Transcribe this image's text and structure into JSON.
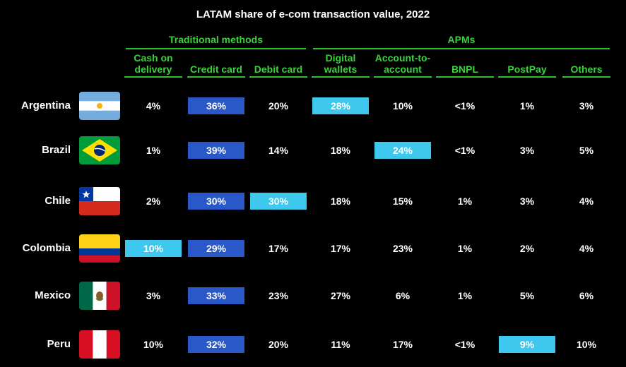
{
  "title": "LATAM share of e-com transaction value, 2022",
  "groups": {
    "traditional": "Traditional methods",
    "apms": "APMs"
  },
  "columns": [
    "Cash on delivery",
    "Credit card",
    "Debit card",
    "Digital wallets",
    "Account-to-account",
    "BNPL",
    "PostPay",
    "Others"
  ],
  "column_lines": [
    [
      "Cash on",
      "delivery"
    ],
    [
      "Credit card"
    ],
    [
      "Debit card"
    ],
    [
      "Digital",
      "wallets"
    ],
    [
      "Account-to-",
      "account"
    ],
    [
      "BNPL"
    ],
    [
      "PostPay"
    ],
    [
      "Others"
    ]
  ],
  "colors": {
    "highlight_dark": "#2a58c9",
    "highlight_light": "#3ec8ee",
    "header_green": "#3dd13d"
  },
  "rows": [
    {
      "country": "Argentina",
      "flag": "argentina-flag-icon",
      "cells": [
        "4%",
        "36%",
        "20%",
        "28%",
        "10%",
        "<1%",
        "1%",
        "3%"
      ],
      "highlights": [
        "",
        "dark",
        "",
        "light",
        "",
        "",
        "",
        ""
      ]
    },
    {
      "country": "Brazil",
      "flag": "brazil-flag-icon",
      "cells": [
        "1%",
        "39%",
        "14%",
        "18%",
        "24%",
        "<1%",
        "3%",
        "5%"
      ],
      "highlights": [
        "",
        "dark",
        "",
        "",
        "light",
        "",
        "",
        ""
      ]
    },
    {
      "country": "Chile",
      "flag": "chile-flag-icon",
      "cells": [
        "2%",
        "30%",
        "30%",
        "18%",
        "15%",
        "1%",
        "3%",
        "4%"
      ],
      "highlights": [
        "",
        "dark",
        "light",
        "",
        "",
        "",
        "",
        ""
      ]
    },
    {
      "country": "Colombia",
      "flag": "colombia-flag-icon",
      "cells": [
        "10%",
        "29%",
        "17%",
        "17%",
        "23%",
        "1%",
        "2%",
        "4%"
      ],
      "highlights": [
        "light",
        "dark",
        "",
        "",
        "",
        "",
        "",
        ""
      ]
    },
    {
      "country": "Mexico",
      "flag": "mexico-flag-icon",
      "cells": [
        "3%",
        "33%",
        "23%",
        "27%",
        "6%",
        "1%",
        "5%",
        "6%"
      ],
      "highlights": [
        "",
        "dark",
        "",
        "",
        "",
        "",
        "",
        ""
      ]
    },
    {
      "country": "Peru",
      "flag": "peru-flag-icon",
      "cells": [
        "10%",
        "32%",
        "20%",
        "11%",
        "17%",
        "<1%",
        "9%",
        "10%"
      ],
      "highlights": [
        "",
        "dark",
        "",
        "",
        "",
        "",
        "light",
        ""
      ]
    }
  ],
  "chart_data": {
    "type": "table",
    "title": "LATAM share of e-com transaction value, 2022",
    "column_groups": [
      {
        "name": "Traditional methods",
        "columns": [
          "Cash on delivery",
          "Credit card",
          "Debit card"
        ]
      },
      {
        "name": "APMs",
        "columns": [
          "Digital wallets",
          "Account-to-account",
          "BNPL",
          "PostPay",
          "Others"
        ]
      }
    ],
    "categories": [
      "Argentina",
      "Brazil",
      "Chile",
      "Colombia",
      "Mexico",
      "Peru"
    ],
    "series": [
      {
        "name": "Cash on delivery",
        "values": [
          "4%",
          "1%",
          "2%",
          "10%",
          "3%",
          "10%"
        ]
      },
      {
        "name": "Credit card",
        "values": [
          "36%",
          "39%",
          "30%",
          "29%",
          "33%",
          "32%"
        ]
      },
      {
        "name": "Debit card",
        "values": [
          "20%",
          "14%",
          "30%",
          "17%",
          "23%",
          "20%"
        ]
      },
      {
        "name": "Digital wallets",
        "values": [
          "28%",
          "18%",
          "18%",
          "17%",
          "27%",
          "11%"
        ]
      },
      {
        "name": "Account-to-account",
        "values": [
          "10%",
          "24%",
          "15%",
          "23%",
          "6%",
          "17%"
        ]
      },
      {
        "name": "BNPL",
        "values": [
          "<1%",
          "<1%",
          "1%",
          "1%",
          "1%",
          "<1%"
        ]
      },
      {
        "name": "PostPay",
        "values": [
          "1%",
          "3%",
          "3%",
          "2%",
          "5%",
          "9%"
        ]
      },
      {
        "name": "Others",
        "values": [
          "3%",
          "5%",
          "4%",
          "4%",
          "6%",
          "10%"
        ]
      }
    ]
  }
}
